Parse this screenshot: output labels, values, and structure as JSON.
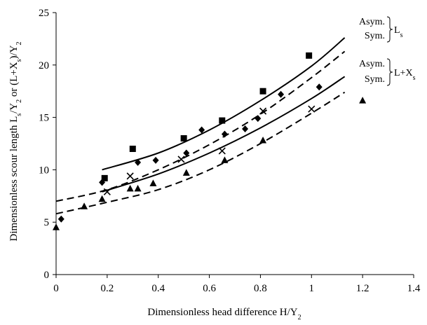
{
  "chart_data": {
    "type": "scatter",
    "xlabel_main": "Dimensionless head difference H/Y",
    "xlabel_sub": "2",
    "ylabel_parts": [
      {
        "t": "Dimensionless scour length L",
        "sub": false
      },
      {
        "t": "s",
        "sub": true
      },
      {
        "t": "/Y",
        "sub": false
      },
      {
        "t": "2",
        "sub": true
      },
      {
        "t": " or (L+X",
        "sub": false
      },
      {
        "t": "s",
        "sub": true
      },
      {
        "t": ")/Y",
        "sub": false
      },
      {
        "t": "2",
        "sub": true
      }
    ],
    "xlim": [
      0,
      1.4
    ],
    "ylim": [
      0,
      25
    ],
    "x_ticks": [
      0,
      0.2,
      0.4,
      0.6,
      0.8,
      1,
      1.2,
      1.4
    ],
    "x_tick_labels": [
      "0",
      "0.2",
      "0.4",
      "0.6",
      "0.8",
      "1",
      "1.2",
      "1.4"
    ],
    "y_ticks": [
      0,
      5,
      10,
      15,
      20,
      25
    ],
    "y_tick_labels": [
      "0",
      "5",
      "10",
      "15",
      "20",
      "25"
    ],
    "grid": false,
    "series": [
      {
        "marker": "square",
        "points": [
          [
            0.19,
            9.2
          ],
          [
            0.3,
            12.0
          ],
          [
            0.5,
            13.0
          ],
          [
            0.65,
            14.7
          ],
          [
            0.81,
            17.5
          ],
          [
            0.99,
            20.9
          ]
        ]
      },
      {
        "marker": "diamond",
        "points": [
          [
            0.02,
            5.3
          ],
          [
            0.18,
            8.8
          ],
          [
            0.32,
            10.7
          ],
          [
            0.39,
            10.9
          ],
          [
            0.51,
            11.6
          ],
          [
            0.57,
            13.8
          ],
          [
            0.66,
            13.4
          ],
          [
            0.74,
            13.9
          ],
          [
            0.79,
            14.9
          ],
          [
            0.88,
            17.2
          ],
          [
            1.03,
            17.9
          ]
        ]
      },
      {
        "marker": "cross",
        "points": [
          [
            0.2,
            7.9
          ],
          [
            0.29,
            9.4
          ],
          [
            0.49,
            11.0
          ],
          [
            0.65,
            11.8
          ],
          [
            0.81,
            15.6
          ],
          [
            1.0,
            15.8
          ]
        ]
      },
      {
        "marker": "triangle",
        "points": [
          [
            0.0,
            4.5
          ],
          [
            0.11,
            6.5
          ],
          [
            0.18,
            7.2
          ],
          [
            0.29,
            8.2
          ],
          [
            0.32,
            8.2
          ],
          [
            0.38,
            8.7
          ],
          [
            0.51,
            9.7
          ],
          [
            0.66,
            10.9
          ],
          [
            0.81,
            12.8
          ],
          [
            1.2,
            16.6
          ]
        ]
      }
    ],
    "curves": [
      {
        "style": "solid",
        "points": [
          [
            0.18,
            10.0
          ],
          [
            0.4,
            11.6
          ],
          [
            0.6,
            13.8
          ],
          [
            0.8,
            16.6
          ],
          [
            1.0,
            19.9
          ],
          [
            1.13,
            22.6
          ]
        ]
      },
      {
        "style": "dashed",
        "points": [
          [
            0.0,
            7.0
          ],
          [
            0.2,
            8.1
          ],
          [
            0.4,
            10.0
          ],
          [
            0.6,
            12.4
          ],
          [
            0.8,
            15.3
          ],
          [
            1.0,
            18.8
          ],
          [
            1.13,
            21.3
          ]
        ]
      },
      {
        "style": "solid",
        "points": [
          [
            0.18,
            7.9
          ],
          [
            0.4,
            9.6
          ],
          [
            0.6,
            11.6
          ],
          [
            0.8,
            14.0
          ],
          [
            1.0,
            16.8
          ],
          [
            1.13,
            18.9
          ]
        ]
      },
      {
        "style": "dashed",
        "points": [
          [
            0.0,
            5.8
          ],
          [
            0.2,
            6.9
          ],
          [
            0.4,
            8.1
          ],
          [
            0.6,
            10.0
          ],
          [
            0.8,
            12.5
          ],
          [
            1.0,
            15.4
          ],
          [
            1.13,
            17.4
          ]
        ]
      }
    ],
    "annotations": {
      "upper_asym": "Asym.",
      "upper_sym": "Sym.",
      "upper_label_main": "L",
      "upper_label_sub": "s",
      "lower_asym": "Asym.",
      "lower_sym": "Sym.",
      "lower_label_main": "L+X",
      "lower_label_sub": "s"
    }
  }
}
